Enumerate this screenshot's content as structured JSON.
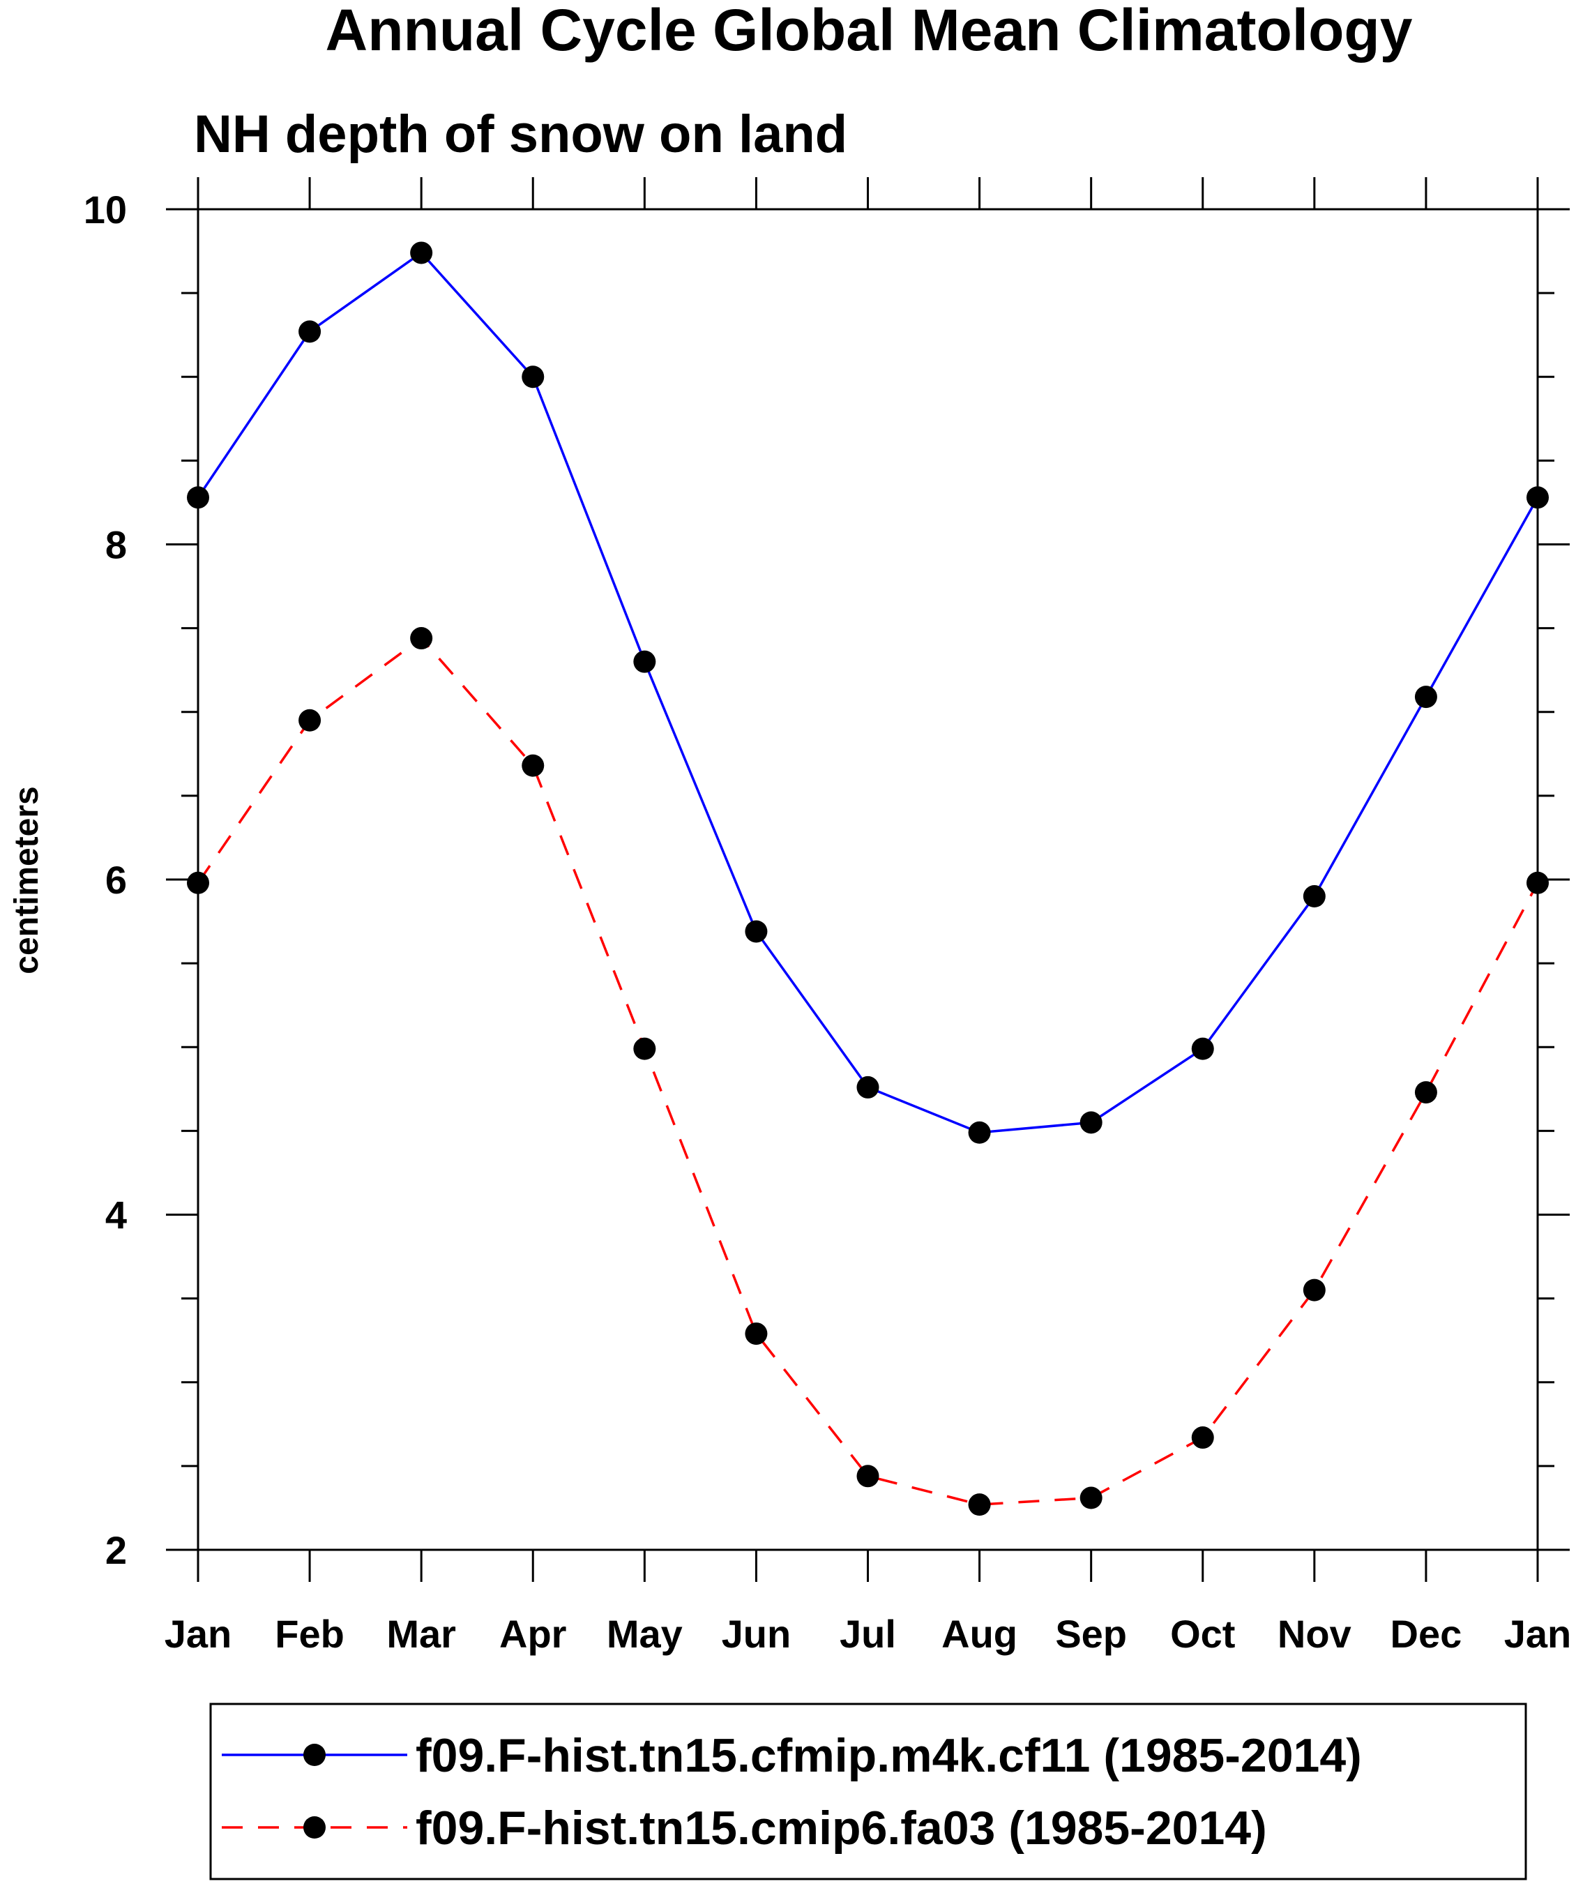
{
  "chart_data": {
    "type": "line",
    "title": "Annual Cycle Global Mean Climatology",
    "subtitle": "NH depth of snow on land",
    "xlabel": "",
    "ylabel": "centimeters",
    "categories": [
      "Jan",
      "Feb",
      "Mar",
      "Apr",
      "May",
      "Jun",
      "Jul",
      "Aug",
      "Sep",
      "Oct",
      "Nov",
      "Dec",
      "Jan"
    ],
    "ylim": [
      2,
      10
    ],
    "yticks": [
      2,
      4,
      6,
      8,
      10
    ],
    "series": [
      {
        "name": "f09.F-hist.tn15.cfmip.m4k.cf11 (1985-2014)",
        "color": "#0000ff",
        "dash": "solid",
        "marker": "filled-circle",
        "values": [
          8.28,
          9.27,
          9.74,
          9.0,
          7.3,
          5.69,
          4.76,
          4.49,
          4.55,
          4.99,
          5.9,
          7.09,
          8.28
        ]
      },
      {
        "name": "f09.F-hist.tn15.cmip6.fa03 (1985-2014)",
        "color": "#ff0000",
        "dash": "dashed",
        "marker": "filled-circle",
        "values": [
          5.98,
          6.95,
          7.44,
          6.68,
          4.99,
          3.29,
          2.44,
          2.27,
          2.31,
          2.67,
          3.55,
          4.73,
          5.98
        ]
      }
    ],
    "grid": false,
    "legend_position": "bottom"
  }
}
